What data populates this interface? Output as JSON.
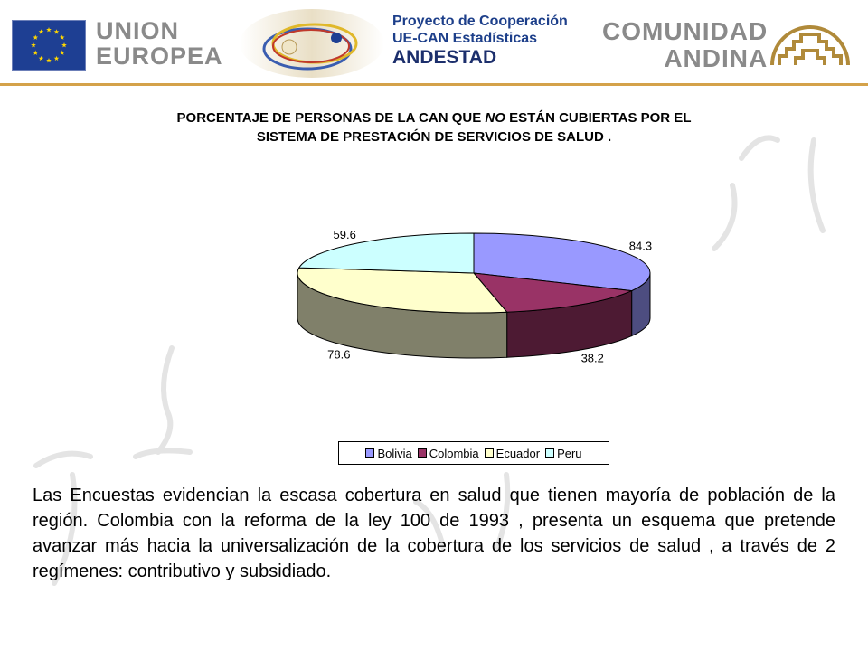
{
  "header": {
    "eu_line1": "UNION",
    "eu_line2": "EUROPEA",
    "project_line1": "Proyecto de Cooperación",
    "project_line2": "UE-CAN Estadísticas",
    "project_line3": "ANDESTAD",
    "can_line1": "COMUNIDAD",
    "can_line2": "ANDINA",
    "eu_flag_icon": "eu-flag-icon",
    "can_logo_icon": "comunidad-andina-logo-icon",
    "andestad_logo_icon": "andestad-logo-icon"
  },
  "title": {
    "part1": "PORCENTAJE DE PERSONAS DE LA CAN QUE ",
    "part2_italic": "NO",
    "part3": " ESTÁN  CUBIERTAS POR EL",
    "line2": "SISTEMA DE PRESTACIÓN DE SERVICIOS DE SALUD ."
  },
  "chart_data": {
    "type": "pie",
    "style": "3d-exploded-none",
    "categories": [
      "Bolivia",
      "Colombia",
      "Ecuador",
      "Peru"
    ],
    "values": [
      84.3,
      38.2,
      78.6,
      59.6
    ],
    "data_labels": [
      "84.3",
      "38.2",
      "78.6",
      "59.6"
    ],
    "colors": [
      "#9999ff",
      "#993366",
      "#ffffcc",
      "#ccffff"
    ],
    "side_colors": [
      "#4d4d80",
      "#4d1a33",
      "#80806a",
      "#668080"
    ],
    "legend_position": "bottom"
  },
  "body": {
    "paragraph": "Las Encuestas evidencian la escasa cobertura en salud que tienen  mayoría de población de la región. Colombia con la reforma de la ley 100 de 1993 , presenta un esquema que pretende avanzar más hacia la universalización de la cobertura de los servicios de salud ,  a través de  2 regímenes: contributivo y subsidiado."
  }
}
